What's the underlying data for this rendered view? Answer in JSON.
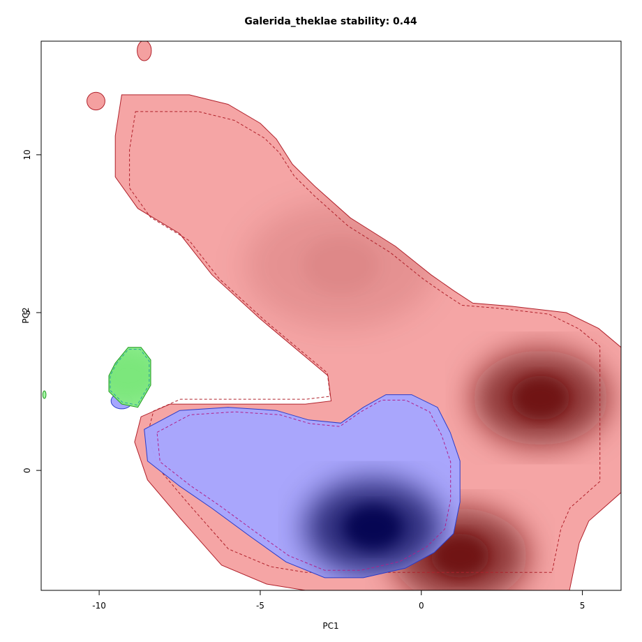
{
  "chart_data": {
    "type": "heatmap",
    "title": "Galerida_theklae stability: 0.44",
    "xlabel": "PC1",
    "ylabel": "PC2",
    "xlim": [
      -11.8,
      6.2
    ],
    "ylim": [
      -3.8,
      13.6
    ],
    "x_ticks": [
      {
        "value": -10,
        "label": "-10"
      },
      {
        "value": -5,
        "label": "-5"
      },
      {
        "value": 0,
        "label": "0"
      },
      {
        "value": 5,
        "label": "5"
      }
    ],
    "y_ticks": [
      {
        "value": 0,
        "label": "0"
      },
      {
        "value": 5,
        "label": "5"
      },
      {
        "value": 10,
        "label": "10"
      }
    ],
    "grid": false,
    "series": [
      {
        "color": "#f4a0a0",
        "dark_color": "#6b0a0a",
        "peaks": [
          [
            3.7,
            2.3
          ],
          [
            1.2,
            -2.7
          ],
          [
            -2.5,
            6.5
          ]
        ],
        "outline": [
          [
            -9.3,
            11.9
          ],
          [
            -7.2,
            11.9
          ],
          [
            -6.0,
            11.6
          ],
          [
            -5.0,
            11.0
          ],
          [
            -4.5,
            10.5
          ],
          [
            -4.0,
            9.7
          ],
          [
            -3.3,
            9.0
          ],
          [
            -2.2,
            8.0
          ],
          [
            -0.8,
            7.1
          ],
          [
            0.3,
            6.2
          ],
          [
            1.0,
            5.7
          ],
          [
            1.6,
            5.3
          ],
          [
            2.8,
            5.2
          ],
          [
            4.5,
            5.0
          ],
          [
            5.5,
            4.5
          ],
          [
            6.2,
            3.9
          ],
          [
            6.2,
            -0.7
          ],
          [
            5.2,
            -1.6
          ],
          [
            4.9,
            -2.3
          ],
          [
            4.6,
            -3.8
          ],
          [
            -3.6,
            -3.8
          ],
          [
            -4.8,
            -3.6
          ],
          [
            -6.2,
            -3.0
          ],
          [
            -7.5,
            -1.5
          ],
          [
            -8.5,
            -0.3
          ],
          [
            -8.9,
            0.9
          ],
          [
            -8.7,
            1.7
          ],
          [
            -7.8,
            2.1
          ],
          [
            -6.8,
            2.1
          ],
          [
            -5.0,
            2.1
          ],
          [
            -3.6,
            2.1
          ],
          [
            -2.8,
            2.2
          ],
          [
            -2.9,
            3.0
          ],
          [
            -3.6,
            3.6
          ],
          [
            -5.0,
            4.8
          ],
          [
            -6.5,
            6.2
          ],
          [
            -7.5,
            7.5
          ],
          [
            -8.8,
            8.3
          ],
          [
            -9.5,
            9.3
          ],
          [
            -9.5,
            10.6
          ]
        ],
        "islands": [
          [
            [
              -10.1,
              11.7
            ],
            0.28,
            0.28
          ],
          [
            [
              -8.6,
              13.3
            ],
            0.22,
            0.32
          ]
        ]
      },
      {
        "color": "#a6a6ff",
        "dark_color": "#00004d",
        "peaks": [
          [
            -1.5,
            -1.8
          ]
        ],
        "outline": [
          [
            -8.6,
            1.3
          ],
          [
            -7.5,
            1.9
          ],
          [
            -6.0,
            2.0
          ],
          [
            -4.5,
            1.9
          ],
          [
            -3.5,
            1.6
          ],
          [
            -2.5,
            1.5
          ],
          [
            -1.8,
            2.0
          ],
          [
            -1.1,
            2.4
          ],
          [
            -0.3,
            2.4
          ],
          [
            0.5,
            2.0
          ],
          [
            0.9,
            1.2
          ],
          [
            1.2,
            0.3
          ],
          [
            1.2,
            -1.0
          ],
          [
            1.0,
            -2.0
          ],
          [
            0.4,
            -2.6
          ],
          [
            -0.5,
            -3.1
          ],
          [
            -1.8,
            -3.4
          ],
          [
            -3.0,
            -3.4
          ],
          [
            -4.2,
            -2.9
          ],
          [
            -5.3,
            -2.1
          ],
          [
            -6.5,
            -1.2
          ],
          [
            -7.5,
            -0.5
          ],
          [
            -8.5,
            0.3
          ]
        ],
        "islands": [
          [
            [
              -9.3,
              2.2
            ],
            0.33,
            0.25
          ]
        ]
      },
      {
        "color": "#a6f5a6",
        "dark_color": "#7ae67a",
        "peaks": [
          [
            -9.1,
            3.0
          ]
        ],
        "outline": [
          [
            -9.5,
            3.4
          ],
          [
            -9.1,
            3.9
          ],
          [
            -8.7,
            3.9
          ],
          [
            -8.4,
            3.5
          ],
          [
            -8.4,
            2.7
          ],
          [
            -8.8,
            2.0
          ],
          [
            -9.3,
            2.1
          ],
          [
            -9.7,
            2.5
          ],
          [
            -9.7,
            3.0
          ]
        ],
        "islands": [
          [
            [
              -11.7,
              2.4
            ],
            0.05,
            0.12
          ]
        ]
      }
    ]
  }
}
